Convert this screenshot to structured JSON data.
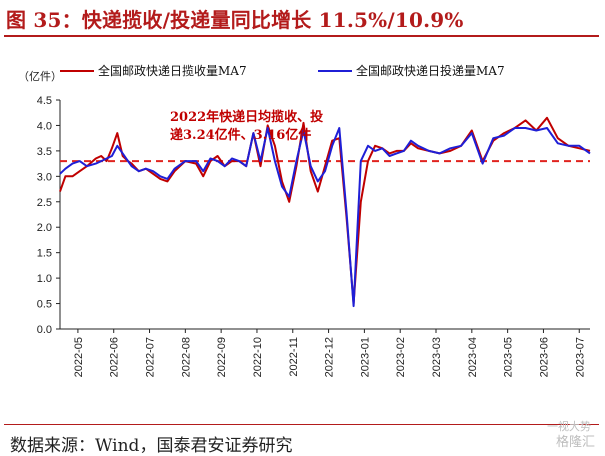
{
  "title": "图 35：快递揽收/投递量同比增长 11.5%/10.9%",
  "source": "数据来源：Wind，国泰君安证券研究",
  "watermark": {
    "line1": "一视大势",
    "line2": "格隆汇"
  },
  "colors": {
    "red": "#c00000",
    "blue": "#1f1fd6",
    "dash": "#e0231e",
    "title": "#b31b1b"
  },
  "chart_data": {
    "type": "line",
    "ylabel": "（亿件）",
    "ylim": [
      0,
      4.5
    ],
    "yticks": [
      "0.0",
      "0.5",
      "1.0",
      "1.5",
      "2.0",
      "2.5",
      "3.0",
      "3.5",
      "4.0",
      "4.5"
    ],
    "x_unit": "month_index (0 = 2022-05)",
    "xlim": [
      0,
      14.8
    ],
    "xticks": [
      "2022-05",
      "2022-06",
      "2022-07",
      "2022-08",
      "2022-09",
      "2022-10",
      "2022-11",
      "2022-12",
      "2023-01",
      "2023-02",
      "2023-03",
      "2023-04",
      "2023-05",
      "2023-06",
      "2023-07"
    ],
    "legend": [
      "全国邮政快递日揽收量MA7",
      "全国邮政快递日投递量MA7"
    ],
    "annotation": {
      "line1": "2022年快递日均揽收、投",
      "line2": "递3.24亿件、3.16亿件"
    },
    "reference_line": {
      "y": 3.3,
      "style": "dashed"
    },
    "series": [
      {
        "name": "全国邮政快递日揽收量MA7",
        "color": "#c00000",
        "x": [
          0,
          0.15,
          0.35,
          0.55,
          0.75,
          1.0,
          1.15,
          1.3,
          1.45,
          1.6,
          1.75,
          1.9,
          2.0,
          2.2,
          2.4,
          2.6,
          2.8,
          3.0,
          3.2,
          3.5,
          3.8,
          4.0,
          4.2,
          4.4,
          4.6,
          4.8,
          5.0,
          5.2,
          5.4,
          5.6,
          5.8,
          6.0,
          6.2,
          6.4,
          6.6,
          6.8,
          7.0,
          7.2,
          7.4,
          7.6,
          7.8,
          8.0,
          8.2,
          8.4,
          8.6,
          8.8,
          9.0,
          9.2,
          9.4,
          9.6,
          9.8,
          10.0,
          10.3,
          10.6,
          10.9,
          11.2,
          11.5,
          11.8,
          12.1,
          12.4,
          12.7,
          13.0,
          13.3,
          13.6,
          13.9,
          14.2,
          14.5,
          14.8
        ],
        "values": [
          2.7,
          3.0,
          3.0,
          3.1,
          3.2,
          3.35,
          3.4,
          3.3,
          3.55,
          3.85,
          3.4,
          3.3,
          3.25,
          3.1,
          3.15,
          3.05,
          2.95,
          2.9,
          3.1,
          3.3,
          3.25,
          3.0,
          3.3,
          3.4,
          3.2,
          3.3,
          3.3,
          3.2,
          3.85,
          3.2,
          4.0,
          3.6,
          2.9,
          2.5,
          3.2,
          4.05,
          3.1,
          2.7,
          3.2,
          3.7,
          3.75,
          2.2,
          0.5,
          2.5,
          3.3,
          3.6,
          3.55,
          3.45,
          3.5,
          3.5,
          3.65,
          3.55,
          3.5,
          3.45,
          3.5,
          3.6,
          3.9,
          3.3,
          3.7,
          3.85,
          3.95,
          4.1,
          3.9,
          4.15,
          3.75,
          3.6,
          3.55,
          3.5
        ]
      },
      {
        "name": "全国邮政快递日投递量MA7",
        "color": "#1f1fd6",
        "x": [
          0,
          0.15,
          0.35,
          0.55,
          0.75,
          1.0,
          1.15,
          1.3,
          1.45,
          1.6,
          1.75,
          1.9,
          2.0,
          2.2,
          2.4,
          2.6,
          2.8,
          3.0,
          3.2,
          3.5,
          3.8,
          4.0,
          4.2,
          4.4,
          4.6,
          4.8,
          5.0,
          5.2,
          5.4,
          5.6,
          5.8,
          6.0,
          6.2,
          6.4,
          6.6,
          6.8,
          7.0,
          7.2,
          7.4,
          7.6,
          7.8,
          8.0,
          8.2,
          8.4,
          8.6,
          8.8,
          9.0,
          9.2,
          9.4,
          9.6,
          9.8,
          10.0,
          10.3,
          10.6,
          10.9,
          11.2,
          11.5,
          11.8,
          12.1,
          12.4,
          12.7,
          13.0,
          13.3,
          13.6,
          13.9,
          14.2,
          14.5,
          14.8
        ],
        "values": [
          3.05,
          3.15,
          3.25,
          3.3,
          3.2,
          3.25,
          3.3,
          3.35,
          3.4,
          3.6,
          3.45,
          3.3,
          3.2,
          3.1,
          3.15,
          3.1,
          3.0,
          2.95,
          3.15,
          3.3,
          3.3,
          3.1,
          3.35,
          3.3,
          3.2,
          3.35,
          3.3,
          3.2,
          3.85,
          3.3,
          3.95,
          3.3,
          2.8,
          2.6,
          3.3,
          3.9,
          3.2,
          2.9,
          3.1,
          3.6,
          3.95,
          2.3,
          0.45,
          3.3,
          3.6,
          3.5,
          3.55,
          3.4,
          3.45,
          3.5,
          3.7,
          3.6,
          3.5,
          3.45,
          3.55,
          3.6,
          3.85,
          3.25,
          3.75,
          3.8,
          3.95,
          3.95,
          3.9,
          3.95,
          3.65,
          3.6,
          3.6,
          3.45
        ]
      }
    ]
  }
}
